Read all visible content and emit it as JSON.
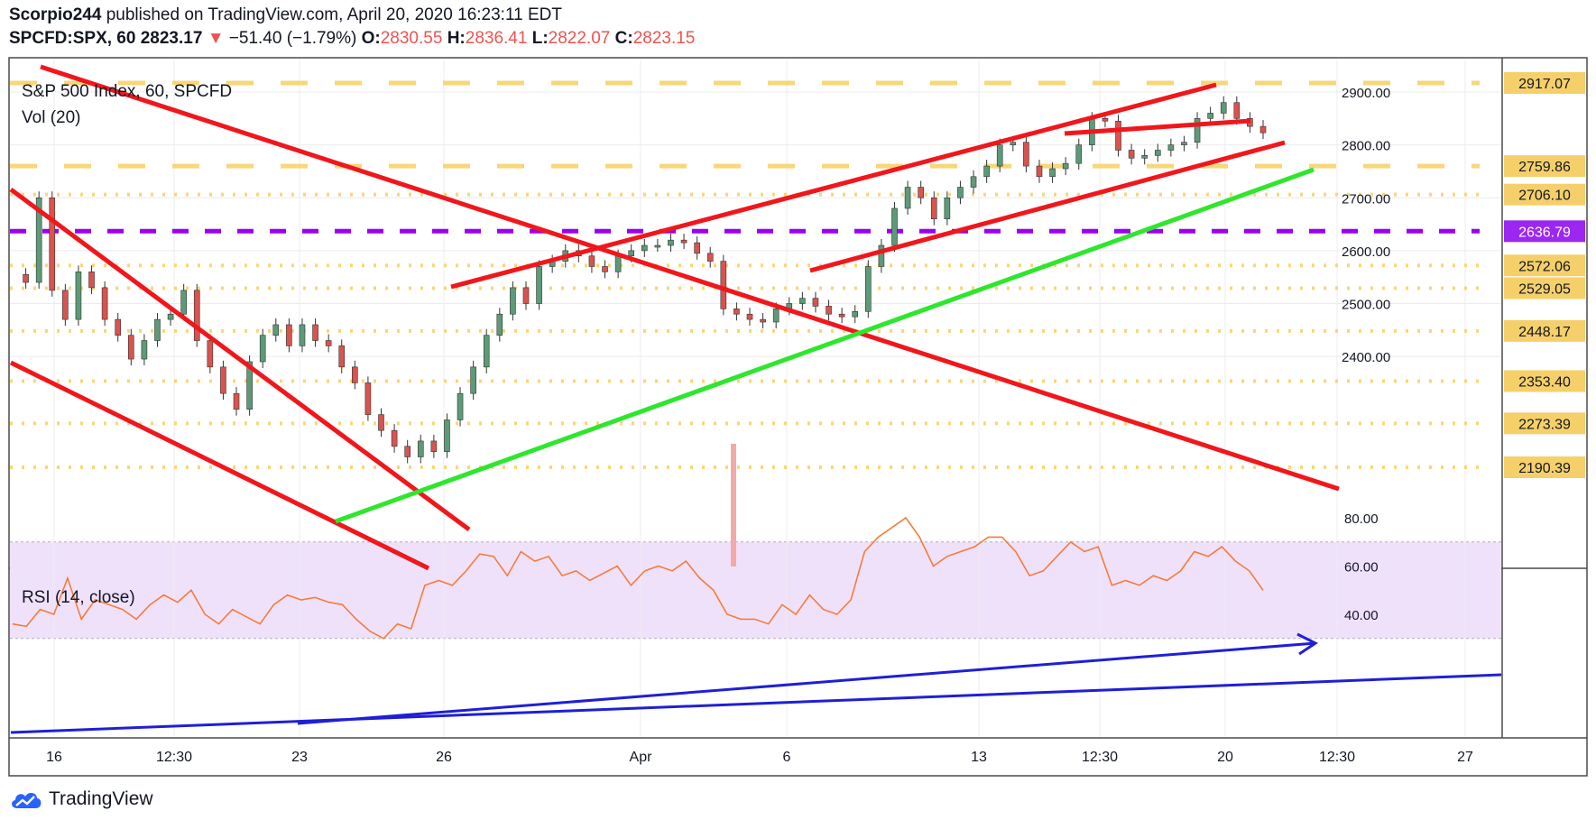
{
  "header": {
    "author": "Scorpio244",
    "published": "published on TradingView.com, April 20, 2020 16:23:11 EDT",
    "symbol": "SPCFD:SPX, 60",
    "last": "2823.17",
    "change_arrow": "▼",
    "change": "−51.40 (−1.79%)",
    "open_label": "O:",
    "open": "2830.55",
    "high_label": "H:",
    "high": "2836.41",
    "low_label": "L:",
    "low": "2822.07",
    "close_label": "C:",
    "close": "2823.15"
  },
  "legend": {
    "title": "S&P 500 Index, 60, SPCFD",
    "volume": "Vol (20)",
    "rsi": "RSI (14, close)"
  },
  "brand": {
    "name": "TradingView"
  },
  "colors": {
    "up": "#5d9a78",
    "down": "#d9534f",
    "trend_red": "#f0171c",
    "trend_green": "#2ee62e",
    "level_gold": "#f7d36b",
    "level_purple": "#9c00f0",
    "rsi_line": "#f57c3a",
    "rsi_trend": "#1f1fd6",
    "rsi_band": "#f0e1fb",
    "axis_label_bg": "#f5d06a",
    "purple_label_bg": "#9c27f0"
  },
  "chart_data": [
    {
      "type": "candlestick",
      "title": "S&P 500 Index, 60, SPCFD",
      "ylim": [
        2150,
        2950
      ],
      "x_ticks": [
        "16",
        "12:30",
        "23",
        "26",
        "Apr",
        "6",
        "13",
        "12:30",
        "20",
        "12:30",
        "27"
      ],
      "y_ticks": [
        2400,
        2500,
        2600,
        2700,
        2800,
        2900
      ],
      "y_tick_labels": [
        "2400.00",
        "2500.00",
        "2600.00",
        "2700.00",
        "2800.00",
        "2900.00"
      ],
      "levels": [
        {
          "value": 2917.07,
          "label": "2917.07",
          "style": "dashed",
          "color": "gold"
        },
        {
          "value": 2759.86,
          "label": "2759.86",
          "style": "dashed",
          "color": "gold"
        },
        {
          "value": 2706.1,
          "label": "2706.10",
          "style": "dotted",
          "color": "gold"
        },
        {
          "value": 2636.79,
          "label": "2636.79",
          "style": "dashed",
          "color": "purple"
        },
        {
          "value": 2572.06,
          "label": "2572.06",
          "style": "dotted",
          "color": "gold"
        },
        {
          "value": 2529.05,
          "label": "2529.05",
          "style": "dotted",
          "color": "gold"
        },
        {
          "value": 2448.17,
          "label": "2448.17",
          "style": "dotted",
          "color": "gold"
        },
        {
          "value": 2353.4,
          "label": "2353.40",
          "style": "dotted",
          "color": "gold"
        },
        {
          "value": 2273.39,
          "label": "2273.39",
          "style": "dotted",
          "color": "gold"
        },
        {
          "value": 2190.39,
          "label": "2190.39",
          "style": "dotted",
          "color": "gold"
        }
      ],
      "close_path": [
        2555,
        2540,
        2700,
        2525,
        2470,
        2560,
        2530,
        2470,
        2440,
        2395,
        2430,
        2470,
        2480,
        2525,
        2430,
        2380,
        2330,
        2300,
        2390,
        2440,
        2460,
        2420,
        2460,
        2430,
        2420,
        2380,
        2350,
        2290,
        2260,
        2230,
        2210,
        2240,
        2220,
        2280,
        2330,
        2380,
        2440,
        2480,
        2530,
        2500,
        2570,
        2580,
        2600,
        2590,
        2570,
        2560,
        2590,
        2600,
        2610,
        2610,
        2620,
        2615,
        2595,
        2580,
        2490,
        2480,
        2470,
        2465,
        2490,
        2500,
        2510,
        2495,
        2480,
        2475,
        2485,
        2570,
        2610,
        2680,
        2720,
        2700,
        2660,
        2700,
        2720,
        2740,
        2760,
        2800,
        2805,
        2760,
        2740,
        2755,
        2765,
        2800,
        2850,
        2845,
        2790,
        2775,
        2780,
        2790,
        2800,
        2805,
        2850,
        2860,
        2880,
        2850,
        2835,
        2823
      ]
    },
    {
      "type": "line",
      "title": "RSI (14, close)",
      "ylim": [
        25,
        82
      ],
      "y_ticks": [
        40,
        60,
        80
      ],
      "y_tick_labels": [
        "40.00",
        "60.00",
        "80.00"
      ],
      "band": [
        30,
        70
      ],
      "values": [
        36,
        35,
        42,
        40,
        55,
        38,
        46,
        44,
        42,
        38,
        44,
        48,
        45,
        50,
        40,
        36,
        42,
        39,
        36,
        44,
        48,
        46,
        47,
        45,
        44,
        38,
        33,
        30,
        36,
        34,
        52,
        54,
        52,
        58,
        65,
        64,
        56,
        66,
        62,
        64,
        56,
        58,
        54,
        57,
        60,
        52,
        58,
        60,
        58,
        62,
        55,
        50,
        40,
        38,
        38,
        36,
        44,
        40,
        48,
        42,
        40,
        46,
        66,
        72,
        76,
        80,
        72,
        60,
        64,
        66,
        68,
        72,
        72,
        66,
        56,
        58,
        64,
        70,
        66,
        68,
        52,
        54,
        52,
        56,
        54,
        58,
        66,
        64,
        68,
        62,
        58,
        50
      ]
    }
  ]
}
